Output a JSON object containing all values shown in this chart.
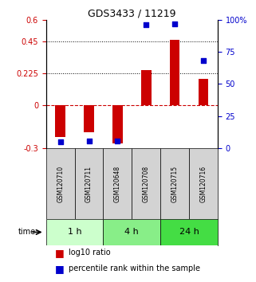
{
  "title": "GDS3433 / 11219",
  "samples": [
    "GSM120710",
    "GSM120711",
    "GSM120648",
    "GSM120708",
    "GSM120715",
    "GSM120716"
  ],
  "log10_ratio": [
    -0.22,
    -0.19,
    -0.265,
    0.245,
    0.46,
    0.185
  ],
  "percentile_rank": [
    5.0,
    5.5,
    5.5,
    96.0,
    97.0,
    68.0
  ],
  "bar_color": "#cc0000",
  "dot_color": "#0000cc",
  "ylim_left": [
    -0.3,
    0.6
  ],
  "ylim_right": [
    0,
    100
  ],
  "yticks_left": [
    -0.3,
    0,
    0.225,
    0.45,
    0.6
  ],
  "yticks_right": [
    0,
    25,
    50,
    75,
    100
  ],
  "ytick_right_labels": [
    "0",
    "25",
    "50",
    "75",
    "100%"
  ],
  "hlines": [
    0.225,
    0.45
  ],
  "time_groups": [
    {
      "label": "1 h",
      "start": 0,
      "end": 2,
      "color": "#ccffcc"
    },
    {
      "label": "4 h",
      "start": 2,
      "end": 4,
      "color": "#88ee88"
    },
    {
      "label": "24 h",
      "start": 4,
      "end": 6,
      "color": "#44dd44"
    }
  ],
  "legend_red": "log10 ratio",
  "legend_blue": "percentile rank within the sample",
  "color_left": "#cc0000",
  "color_right": "#0000cc",
  "zero_line_color": "#cc0000",
  "dotted_line_color": "black"
}
